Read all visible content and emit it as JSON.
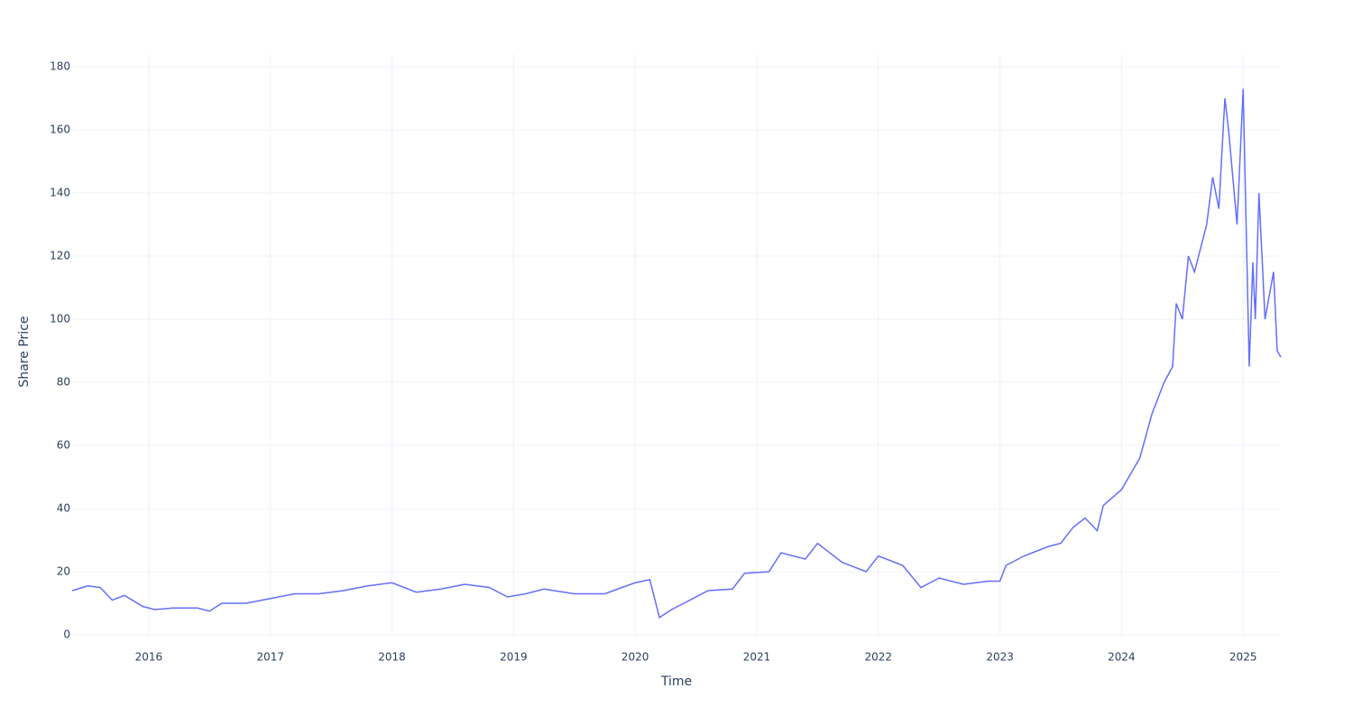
{
  "chart_data": {
    "type": "line",
    "x_label": "Time",
    "y_label": "Share Price",
    "xlim": [
      2015.37,
      2025.31
    ],
    "ylim": [
      0,
      184
    ],
    "xticks": [
      2016,
      2017,
      2018,
      2019,
      2020,
      2021,
      2022,
      2023,
      2024,
      2025
    ],
    "yticks": [
      0,
      20,
      40,
      60,
      80,
      100,
      120,
      140,
      160,
      180
    ],
    "grid": true,
    "series": [
      {
        "color": "#636efa",
        "x": [
          2015.37,
          2015.5,
          2015.6,
          2015.7,
          2015.8,
          2015.95,
          2016.05,
          2016.2,
          2016.4,
          2016.5,
          2016.6,
          2016.8,
          2017.0,
          2017.2,
          2017.4,
          2017.6,
          2017.8,
          2018.0,
          2018.2,
          2018.4,
          2018.6,
          2018.8,
          2018.95,
          2019.1,
          2019.25,
          2019.5,
          2019.75,
          2020.0,
          2020.12,
          2020.2,
          2020.3,
          2020.4,
          2020.6,
          2020.8,
          2020.9,
          2021.1,
          2021.2,
          2021.4,
          2021.5,
          2021.7,
          2021.9,
          2022.0,
          2022.2,
          2022.35,
          2022.5,
          2022.7,
          2022.9,
          2023.0,
          2023.05,
          2023.2,
          2023.4,
          2023.5,
          2023.6,
          2023.7,
          2023.8,
          2023.85,
          2024.0,
          2024.15,
          2024.25,
          2024.35,
          2024.42,
          2024.45,
          2024.5,
          2024.55,
          2024.6,
          2024.7,
          2024.75,
          2024.8,
          2024.85,
          2024.88,
          2024.95,
          2025.0,
          2025.05,
          2025.08,
          2025.1,
          2025.13,
          2025.18,
          2025.25,
          2025.28,
          2025.31
        ],
        "values": [
          14,
          15.5,
          15,
          11,
          12.5,
          9,
          8,
          8.5,
          8.5,
          7.5,
          10,
          10,
          11.5,
          13,
          13,
          14,
          15.5,
          16.5,
          13.5,
          14.5,
          16,
          15,
          12,
          13,
          14.5,
          13,
          13,
          16.5,
          17.5,
          5.5,
          8,
          10,
          14,
          14.5,
          19.5,
          20,
          26,
          24,
          29,
          23,
          20,
          25,
          22,
          15,
          18,
          16,
          17,
          17,
          22,
          25,
          28,
          29,
          34,
          37,
          33,
          41,
          46,
          56,
          70,
          80,
          85,
          105,
          100,
          120,
          115,
          130,
          145,
          135,
          170,
          160,
          130,
          173,
          85,
          118,
          100,
          140,
          100,
          115,
          90,
          88
        ]
      }
    ]
  }
}
